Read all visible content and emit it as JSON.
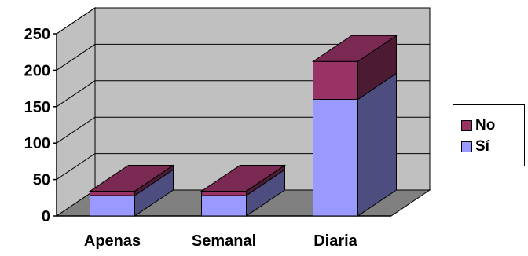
{
  "chart_data": {
    "type": "bar",
    "stacked": true,
    "three_d": true,
    "title": "",
    "xlabel": "",
    "ylabel": "",
    "categories": [
      "Apenas",
      "Semanal",
      "Diaria"
    ],
    "series": [
      {
        "name": "Sí",
        "values": [
          28,
          28,
          160
        ],
        "color": "#9999FF"
      },
      {
        "name": "No",
        "values": [
          6,
          6,
          52
        ],
        "color": "#993366"
      }
    ],
    "ylim": [
      0,
      250
    ],
    "yticks": [
      0,
      50,
      100,
      150,
      200,
      250
    ],
    "grid": true,
    "legend": "right",
    "wall_color": "#C0C0C0",
    "floor_color": "#808080"
  },
  "legend": {
    "items": [
      {
        "label": "No",
        "color": "#993366"
      },
      {
        "label": "Sí",
        "color": "#9999FF"
      }
    ]
  }
}
